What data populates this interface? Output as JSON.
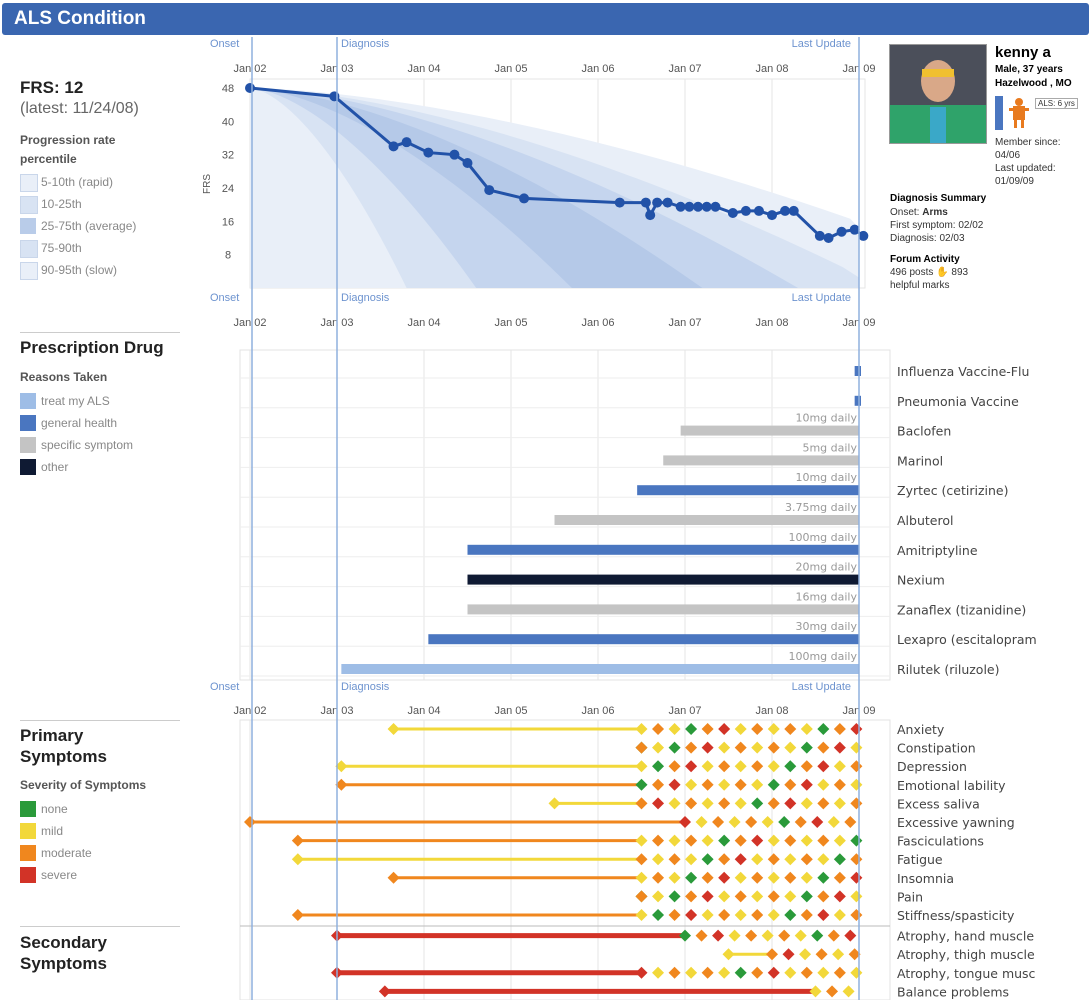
{
  "header": {
    "title": "ALS Condition"
  },
  "frs": {
    "title": "FRS: 12",
    "latest": "(latest: 11/24/08)",
    "legend_title": "Progression rate percentile",
    "legend": [
      "5-10th (rapid)",
      "10-25th",
      "25-75th (average)",
      "75-90th",
      "90-95th (slow)"
    ],
    "legend_colors": [
      "#e9eff8",
      "#d8e3f3",
      "#b9cce9",
      "#d8e3f3",
      "#e9eff8"
    ]
  },
  "axis_markers": {
    "onset": "Onset",
    "diagnosis": "Diagnosis",
    "last_update": "Last Update"
  },
  "time_ticks": [
    "Jan 02",
    "Jan 03",
    "Jan 04",
    "Jan 05",
    "Jan 06",
    "Jan 07",
    "Jan 08",
    "Jan 09"
  ],
  "drugs_section": {
    "title": "Prescription Drug",
    "legend_title": "Reasons Taken",
    "legend": [
      "treat my ALS",
      "general health",
      "specific symptom",
      "other"
    ],
    "legend_colors": [
      "#9ebde6",
      "#4a76c0",
      "#c4c4c4",
      "#0f1a33"
    ]
  },
  "symptoms_section": {
    "title_line1": "Primary",
    "title_line2": "Symptoms",
    "legend_title": "Severity of Symptoms",
    "legend": [
      "none",
      "mild",
      "moderate",
      "severe"
    ],
    "legend_colors": [
      "#2a9a3a",
      "#f2d83a",
      "#f0871e",
      "#d23327"
    ],
    "secondary_line1": "Secondary",
    "secondary_line2": "Symptoms"
  },
  "profile": {
    "name": "kenny a",
    "demographics": "Male, 37 years",
    "location": "Hazelwood , MO",
    "als_badge": "ALS: 6 yrs",
    "member_since_label": "Member since:",
    "member_since": "04/06",
    "last_updated_label": "Last updated:",
    "last_updated": "01/09/09",
    "diagnosis_summary_title": "Diagnosis Summary",
    "onset_label": "Onset:",
    "onset_value": "Arms",
    "first_symptom_label": "First symptom:",
    "first_symptom_value": "02/02",
    "diagnosis_label": "Diagnosis:",
    "diagnosis_value": "02/03",
    "forum_title": "Forum Activity",
    "forum_line1_a": "496 posts",
    "forum_line1_b": "893",
    "forum_line2": "helpful marks"
  },
  "chart_data": [
    {
      "type": "line",
      "title": "FRS",
      "ylabel": "FRS",
      "ylim": [
        0,
        48
      ],
      "yticks": [
        8,
        16,
        24,
        32,
        40,
        48
      ],
      "x_unit": "years since Jan 2002",
      "x": [
        0.0,
        0.97,
        1.65,
        1.8,
        2.05,
        2.35,
        2.5,
        2.75,
        3.15,
        4.25,
        4.55,
        4.6,
        4.68,
        4.8,
        4.95,
        5.05,
        5.15,
        5.25,
        5.35,
        5.55,
        5.7,
        5.85,
        6.0,
        6.15,
        6.25,
        6.55,
        6.65,
        6.8,
        6.95,
        7.05
      ],
      "y": [
        48,
        46,
        34,
        35,
        32.5,
        32,
        30,
        23.5,
        21.5,
        20.5,
        20.5,
        17.5,
        20.5,
        20.5,
        19.5,
        19.5,
        19.5,
        19.5,
        19.5,
        18,
        18.5,
        18.5,
        17.5,
        18.5,
        18.5,
        12.5,
        12,
        13.5,
        14,
        12.5
      ]
    },
    {
      "type": "bar",
      "title": "Prescription Drug",
      "orientation": "horizontal-timeline",
      "x_unit": "years since Jan 2002",
      "series": [
        {
          "name": "Influenza Vaccine-Flu",
          "dose": "",
          "reason": "general health",
          "start": 6.95,
          "end": 7.15
        },
        {
          "name": "Pneumonia Vaccine",
          "dose": "",
          "reason": "general health",
          "start": 6.95,
          "end": 7.15
        },
        {
          "name": "Baclofen",
          "dose": "10mg daily",
          "reason": "specific symptom",
          "start": 4.95,
          "end": 7.0
        },
        {
          "name": "Marinol",
          "dose": "5mg daily",
          "reason": "specific symptom",
          "start": 4.75,
          "end": 7.0
        },
        {
          "name": "Zyrtec (cetirizine)",
          "dose": "10mg daily",
          "reason": "general health",
          "start": 4.45,
          "end": 7.0
        },
        {
          "name": "Albuterol",
          "dose": "3.75mg daily",
          "reason": "specific symptom",
          "start": 3.5,
          "end": 7.0
        },
        {
          "name": "Amitriptyline",
          "dose": "100mg daily",
          "reason": "general health",
          "start": 2.5,
          "end": 7.0
        },
        {
          "name": "Nexium",
          "dose": "20mg daily",
          "reason": "other",
          "start": 2.5,
          "end": 7.0
        },
        {
          "name": "Zanaflex (tizanidine)",
          "dose": "16mg daily",
          "reason": "specific symptom",
          "start": 2.5,
          "end": 7.0
        },
        {
          "name": "Lexapro (escitalopram",
          "dose": "30mg daily",
          "reason": "general health",
          "start": 2.05,
          "end": 7.0
        },
        {
          "name": "Rilutek (riluzole)",
          "dose": "100mg daily",
          "reason": "treat my ALS",
          "start": 1.05,
          "end": 7.0
        }
      ]
    },
    {
      "type": "scatter",
      "title": "Primary Symptoms",
      "x_unit": "years since Jan 2002",
      "series": [
        {
          "name": "Anxiety",
          "start": 1.65,
          "line": "mild",
          "dense_from": 4.5
        },
        {
          "name": "Constipation",
          "start": 4.5,
          "line": "none",
          "dense_from": 4.5
        },
        {
          "name": "Depression",
          "start": 1.05,
          "line": "mild",
          "dense_from": 4.5
        },
        {
          "name": "Emotional lability",
          "start": 1.05,
          "line": "moderate",
          "dense_from": 4.5
        },
        {
          "name": "Excess saliva",
          "start": 3.5,
          "line": "mild",
          "dense_from": 4.5
        },
        {
          "name": "Excessive yawning",
          "start": 0.0,
          "line": "moderate",
          "dense_from": 5.0
        },
        {
          "name": "Fasciculations",
          "start": 0.55,
          "line": "moderate",
          "dense_from": 4.5
        },
        {
          "name": "Fatigue",
          "start": 0.55,
          "line": "mild",
          "dense_from": 4.5
        },
        {
          "name": "Insomnia",
          "start": 1.65,
          "line": "moderate",
          "dense_from": 4.5
        },
        {
          "name": "Pain",
          "start": 4.5,
          "line": "none",
          "dense_from": 4.5
        },
        {
          "name": "Stiffness/spasticity",
          "start": 0.55,
          "line": "moderate",
          "dense_from": 4.5
        },
        {
          "name": "Atrophy, hand muscle",
          "start": 1.0,
          "line": "severe",
          "dense_from": 5.0
        },
        {
          "name": "Atrophy, thigh muscle",
          "start": 5.5,
          "line": "mild",
          "dense_from": 6.0
        },
        {
          "name": "Atrophy, tongue musc",
          "start": 1.0,
          "line": "severe",
          "dense_from": 4.5
        },
        {
          "name": "Balance problems",
          "start": 1.55,
          "line": "severe",
          "dense_from": 6.5
        }
      ]
    }
  ]
}
